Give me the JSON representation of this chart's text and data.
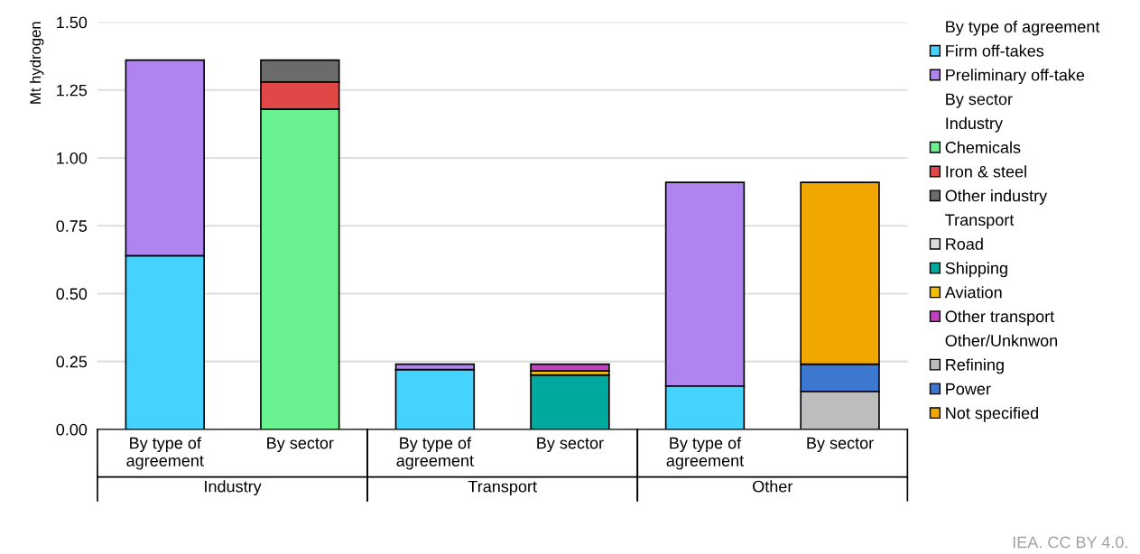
{
  "chart_data": {
    "type": "bar",
    "stacked": true,
    "ylabel": "Mt hydrogen",
    "categories": [
      "By type of\nagreement",
      "By sector",
      "By type of\nagreement",
      "By sector",
      "By type of\nagreement",
      "By sector"
    ],
    "ylim": [
      0,
      1.5
    ],
    "yticks": [
      {
        "value": 0,
        "label": "0.00"
      },
      {
        "value": 0.25,
        "label": "0.25"
      },
      {
        "value": 0.5,
        "label": "0.50"
      },
      {
        "value": 0.75,
        "label": "0.75"
      },
      {
        "value": 1.0,
        "label": "1.00"
      },
      {
        "value": 1.25,
        "label": "1.25"
      },
      {
        "value": 1.5,
        "label": "1.50"
      }
    ],
    "grid": "y",
    "legend": "right",
    "annotations": [
      "Industry",
      "Transport",
      "Other",
      "IEA. CC BY 4.0."
    ],
    "series": [
      {
        "name": "By type of agreement",
        "color": null,
        "values": [
          null,
          null,
          null,
          null,
          null,
          null
        ]
      },
      {
        "name": "Firm off-takes",
        "color": "#45d2fd",
        "values": [
          0.64,
          null,
          0.22,
          null,
          0.16,
          null
        ]
      },
      {
        "name": "Preliminary off-take",
        "color": "#b084ee",
        "values": [
          0.72,
          null,
          0.02,
          null,
          0.75,
          null
        ]
      },
      {
        "name": "By sector",
        "color": null,
        "values": [
          null,
          null,
          null,
          null,
          null,
          null
        ]
      },
      {
        "name": "Industry",
        "color": null,
        "values": [
          null,
          null,
          null,
          null,
          null,
          null
        ]
      },
      {
        "name": "Chemicals",
        "color": "#69f28f",
        "values": [
          null,
          1.18,
          null,
          null,
          null,
          null
        ]
      },
      {
        "name": "Iron & steel",
        "color": "#e04848",
        "values": [
          null,
          0.1,
          null,
          null,
          null,
          null
        ]
      },
      {
        "name": "Other industry",
        "color": "#6b6b6b",
        "values": [
          null,
          0.08,
          null,
          null,
          null,
          null
        ]
      },
      {
        "name": "Transport",
        "color": null,
        "values": [
          null,
          null,
          null,
          null,
          null,
          null
        ]
      },
      {
        "name": "Road",
        "color": "#dcdcdc",
        "values": [
          null,
          null,
          null,
          null,
          null,
          null
        ]
      },
      {
        "name": "Shipping",
        "color": "#00a99d",
        "values": [
          null,
          null,
          null,
          0.2,
          null,
          null
        ]
      },
      {
        "name": "Aviation",
        "color": "#f0c000",
        "values": [
          null,
          null,
          null,
          0.015,
          null,
          null
        ]
      },
      {
        "name": "Other transport",
        "color": "#c040c0",
        "values": [
          null,
          null,
          null,
          0.025,
          null,
          null
        ]
      },
      {
        "name": "Other/Unknwon",
        "color": null,
        "values": [
          null,
          null,
          null,
          null,
          null,
          null
        ]
      },
      {
        "name": "Refining",
        "color": "#bdbdbd",
        "values": [
          null,
          null,
          null,
          null,
          null,
          0.14
        ]
      },
      {
        "name": "Power",
        "color": "#3c78d0",
        "values": [
          null,
          null,
          null,
          null,
          null,
          0.1
        ]
      },
      {
        "name": "Not specified",
        "color": "#f0a800",
        "values": [
          null,
          null,
          null,
          null,
          null,
          0.67
        ]
      }
    ]
  }
}
